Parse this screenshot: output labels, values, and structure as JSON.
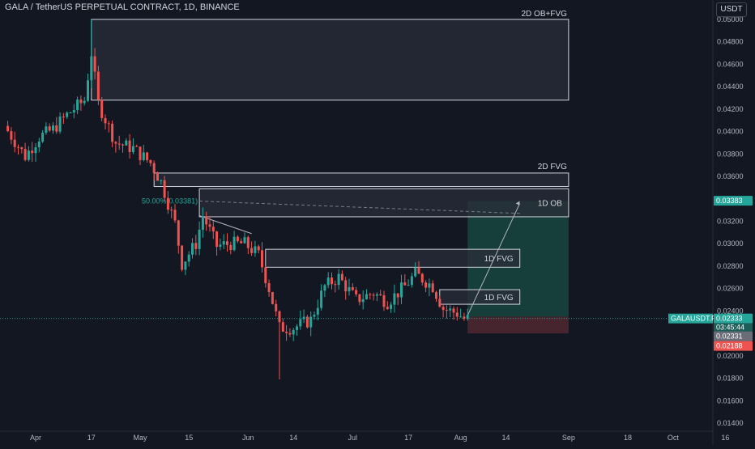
{
  "header": {
    "title": "GALA / TetherUS PERPETUAL CONTRACT, 1D, BINANCE",
    "currency": "USDT"
  },
  "colors": {
    "background": "#131722",
    "up": "#26a69a",
    "down": "#ef5350",
    "zone_fill": "#2a2e39",
    "zone_border": "#d1d4dc",
    "target_zone": "#17453f",
    "stop_zone": "#4e2730",
    "price_tag": "#26a69a"
  },
  "chart_data": {
    "type": "candlestick",
    "y_axis": {
      "ylim": [
        0.0135,
        0.0503
      ],
      "ticks": [
        "0.05000",
        "0.04800",
        "0.04600",
        "0.04400",
        "0.04200",
        "0.04000",
        "0.03800",
        "0.03600",
        "0.03400",
        "0.03200",
        "0.03000",
        "0.02800",
        "0.02600",
        "0.02400",
        "0.02200",
        "0.02000",
        "0.01800",
        "0.01600",
        "0.01400"
      ]
    },
    "x_axis": {
      "labels": [
        {
          "text": "Apr",
          "date": "2023-04-01"
        },
        {
          "text": "17",
          "date": "2023-04-17"
        },
        {
          "text": "May",
          "date": "2023-05-01"
        },
        {
          "text": "15",
          "date": "2023-05-15"
        },
        {
          "text": "Jun",
          "date": "2023-06-01"
        },
        {
          "text": "14",
          "date": "2023-06-14"
        },
        {
          "text": "Jul",
          "date": "2023-07-01"
        },
        {
          "text": "17",
          "date": "2023-07-17"
        },
        {
          "text": "Aug",
          "date": "2023-08-01"
        },
        {
          "text": "14",
          "date": "2023-08-14"
        },
        {
          "text": "Sep",
          "date": "2023-09-01"
        },
        {
          "text": "18",
          "date": "2023-09-18"
        },
        {
          "text": "Oct",
          "date": "2023-10-01"
        },
        {
          "text": "16",
          "date": "2023-10-16"
        }
      ]
    },
    "price_anchors": [
      {
        "date": "2023-03-24",
        "price": 0.0405
      },
      {
        "date": "2023-03-30",
        "price": 0.0378
      },
      {
        "date": "2023-04-03",
        "price": 0.0395
      },
      {
        "date": "2023-04-07",
        "price": 0.0402
      },
      {
        "date": "2023-04-11",
        "price": 0.0415
      },
      {
        "date": "2023-04-16",
        "price": 0.0428
      },
      {
        "date": "2023-04-18",
        "price": 0.047
      },
      {
        "date": "2023-04-20",
        "price": 0.0425
      },
      {
        "date": "2023-04-25",
        "price": 0.039
      },
      {
        "date": "2023-04-30",
        "price": 0.0385
      },
      {
        "date": "2023-05-05",
        "price": 0.0372
      },
      {
        "date": "2023-05-08",
        "price": 0.0355
      },
      {
        "date": "2023-05-12",
        "price": 0.0318
      },
      {
        "date": "2023-05-14",
        "price": 0.0282
      },
      {
        "date": "2023-05-18",
        "price": 0.03
      },
      {
        "date": "2023-05-20",
        "price": 0.0325
      },
      {
        "date": "2023-05-24",
        "price": 0.0298
      },
      {
        "date": "2023-05-28",
        "price": 0.03
      },
      {
        "date": "2023-06-01",
        "price": 0.03
      },
      {
        "date": "2023-06-05",
        "price": 0.029
      },
      {
        "date": "2023-06-08",
        "price": 0.026
      },
      {
        "date": "2023-06-11",
        "price": 0.0225
      },
      {
        "date": "2023-06-15",
        "price": 0.0225
      },
      {
        "date": "2023-06-20",
        "price": 0.0232
      },
      {
        "date": "2023-06-24",
        "price": 0.0262
      },
      {
        "date": "2023-06-28",
        "price": 0.027
      },
      {
        "date": "2023-07-03",
        "price": 0.025
      },
      {
        "date": "2023-07-08",
        "price": 0.0256
      },
      {
        "date": "2023-07-12",
        "price": 0.0248
      },
      {
        "date": "2023-07-17",
        "price": 0.0262
      },
      {
        "date": "2023-07-20",
        "price": 0.0273
      },
      {
        "date": "2023-07-25",
        "price": 0.0262
      },
      {
        "date": "2023-07-28",
        "price": 0.0242
      },
      {
        "date": "2023-08-01",
        "price": 0.0238
      },
      {
        "date": "2023-08-03",
        "price": 0.0233
      }
    ],
    "key_levels": {
      "last_price": "0.02333",
      "countdown": "03:45:44",
      "level_0": "0.02331",
      "stop_level": "0.02188",
      "target_level": "0.03383",
      "fib_label": "50.00%(0.03381)",
      "symbol_tag": "GALAUSDT.P"
    }
  },
  "zones": [
    {
      "label": "2D OB+FVG",
      "start": "2023-04-17",
      "end": "2023-09-01",
      "top": 0.05,
      "bottom": 0.0428
    },
    {
      "label": "2D FVG",
      "start": "2023-05-05",
      "end": "2023-09-01",
      "top": 0.0363,
      "bottom": 0.0351
    },
    {
      "label": "1D OB",
      "start": "2023-05-18",
      "end": "2023-09-01",
      "top": 0.0349,
      "bottom": 0.0324
    },
    {
      "label": "1D FVG",
      "start": "2023-06-06",
      "end": "2023-08-18",
      "top": 0.0295,
      "bottom": 0.0279
    },
    {
      "label": "1D FVG",
      "start": "2023-07-26",
      "end": "2023-08-18",
      "top": 0.0259,
      "bottom": 0.0246
    }
  ],
  "position": {
    "start": "2023-08-03",
    "end": "2023-09-01",
    "entry": 0.0235,
    "target": 0.0338,
    "stop": 0.022
  }
}
